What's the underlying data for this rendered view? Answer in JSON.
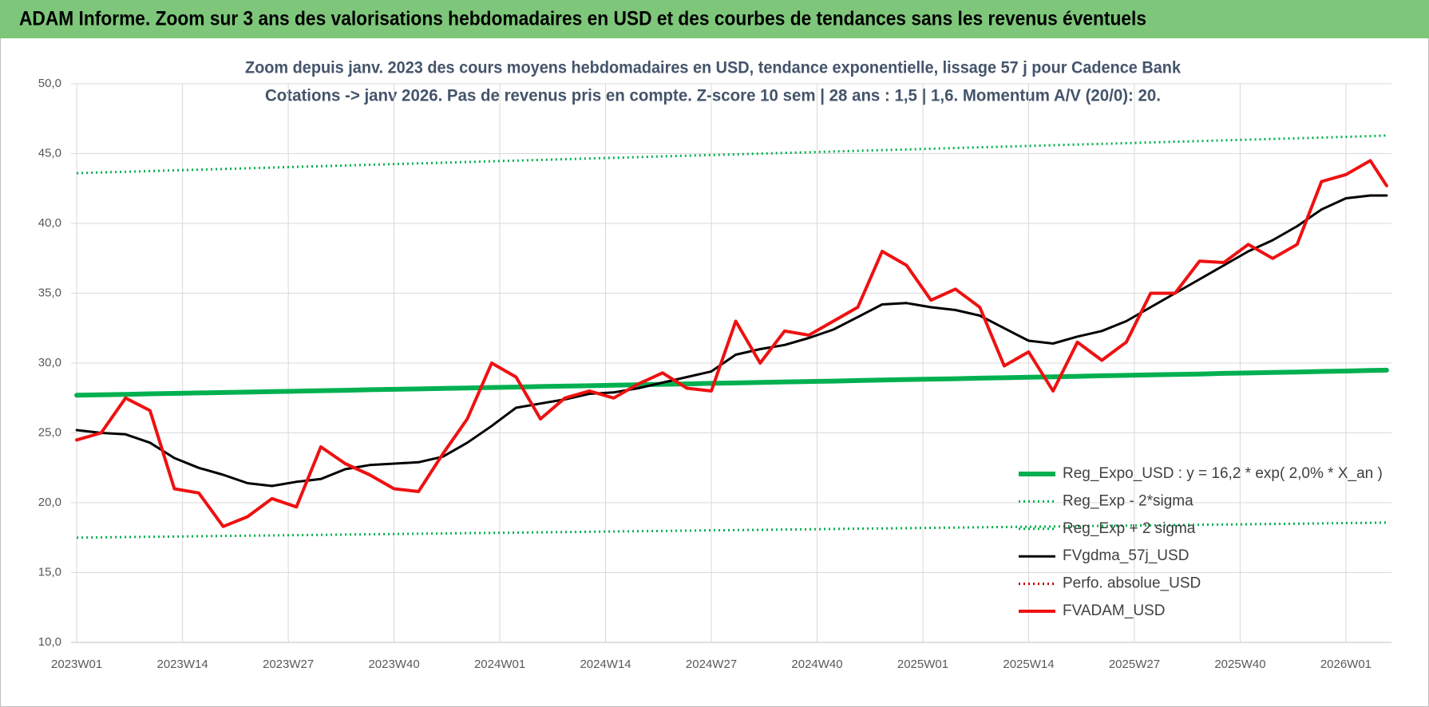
{
  "chart_data": {
    "type": "line",
    "title": "ADAM Informe. Zoom sur 3 ans des valorisations hebdomadaires en USD et des courbes de tendances sans les revenus éventuels",
    "subtitle": [
      "Zoom depuis janv. 2023 des cours moyens hebdomadaires en USD, tendance exponentielle, lissage 57 j pour Cadence Bank",
      "Cotations -> janv 2026. Pas de revenus pris en compte. Z-score 10 sem  | 28 ans : 1,5 | 1,6. Momentum A/V (20/0): 20."
    ],
    "x": [
      0,
      3,
      6,
      9,
      12,
      15,
      18,
      21,
      24,
      27,
      30,
      33,
      36,
      39,
      42,
      45,
      48,
      51,
      54,
      57,
      60,
      63,
      66,
      69,
      72,
      75,
      78,
      81,
      84,
      87,
      90,
      93,
      96,
      99,
      102,
      105,
      108,
      111,
      114,
      117,
      120,
      123,
      126,
      129,
      132,
      135,
      138,
      141,
      144,
      147,
      150,
      153,
      156,
      159,
      161
    ],
    "xlim": [
      -0.7,
      161.6
    ],
    "xticks": [
      {
        "value": 0,
        "label": "2023W01"
      },
      {
        "value": 13,
        "label": "2023W14"
      },
      {
        "value": 26,
        "label": "2023W27"
      },
      {
        "value": 39,
        "label": "2023W40"
      },
      {
        "value": 52,
        "label": "2024W01"
      },
      {
        "value": 65,
        "label": "2024W14"
      },
      {
        "value": 78,
        "label": "2024W27"
      },
      {
        "value": 91,
        "label": "2024W40"
      },
      {
        "value": 104,
        "label": "2025W01"
      },
      {
        "value": 117,
        "label": "2025W14"
      },
      {
        "value": 130,
        "label": "2025W27"
      },
      {
        "value": 143,
        "label": "2025W40"
      },
      {
        "value": 156,
        "label": "2026W01"
      }
    ],
    "ylim": [
      10,
      50
    ],
    "yticks": [
      {
        "value": 10,
        "label": "10,0"
      },
      {
        "value": 15,
        "label": "15,0"
      },
      {
        "value": 20,
        "label": "20,0"
      },
      {
        "value": 25,
        "label": "25,0"
      },
      {
        "value": 30,
        "label": "30,0"
      },
      {
        "value": 35,
        "label": "35,0"
      },
      {
        "value": 40,
        "label": "40,0"
      },
      {
        "value": 45,
        "label": "45,0"
      },
      {
        "value": 50,
        "label": "50,0"
      }
    ],
    "grid": true,
    "legend": "lower right",
    "series": [
      {
        "name": "Reg_Expo_USD : y = 16,2 * exp( 2,0% *  X_an )",
        "color": "#00b050",
        "style": "solid",
        "width": 6,
        "values": [
          27.7,
          27.73,
          27.76,
          27.8,
          27.83,
          27.86,
          27.89,
          27.92,
          27.96,
          27.99,
          28.02,
          28.05,
          28.09,
          28.12,
          28.15,
          28.18,
          28.22,
          28.25,
          28.28,
          28.32,
          28.35,
          28.38,
          28.41,
          28.45,
          28.48,
          28.51,
          28.55,
          28.58,
          28.61,
          28.65,
          28.68,
          28.71,
          28.75,
          28.78,
          28.82,
          28.85,
          28.88,
          28.92,
          28.95,
          28.99,
          29.02,
          29.05,
          29.09,
          29.12,
          29.16,
          29.19,
          29.22,
          29.26,
          29.29,
          29.33,
          29.36,
          29.4,
          29.43,
          29.47,
          29.49
        ]
      },
      {
        "name": "Reg_Exp - 2*sigma",
        "color": "#00b050",
        "style": "dotted",
        "width": 3,
        "values": [
          17.5,
          17.52,
          17.54,
          17.56,
          17.58,
          17.6,
          17.62,
          17.64,
          17.66,
          17.68,
          17.7,
          17.72,
          17.74,
          17.76,
          17.78,
          17.8,
          17.82,
          17.84,
          17.86,
          17.88,
          17.9,
          17.92,
          17.94,
          17.96,
          17.98,
          18.0,
          18.02,
          18.04,
          18.06,
          18.08,
          18.1,
          18.12,
          18.14,
          18.16,
          18.18,
          18.2,
          18.22,
          18.24,
          18.26,
          18.28,
          18.3,
          18.32,
          18.34,
          18.36,
          18.38,
          18.4,
          18.42,
          18.44,
          18.46,
          18.48,
          18.5,
          18.52,
          18.54,
          18.56,
          18.58
        ]
      },
      {
        "name": "Reg_Exp + 2 sigma",
        "color": "#00b050",
        "style": "dotted",
        "width": 3,
        "values": [
          43.6,
          43.65,
          43.7,
          43.75,
          43.8,
          43.85,
          43.9,
          43.95,
          44.0,
          44.05,
          44.1,
          44.15,
          44.2,
          44.25,
          44.3,
          44.35,
          44.4,
          44.45,
          44.5,
          44.55,
          44.6,
          44.65,
          44.7,
          44.75,
          44.8,
          44.85,
          44.9,
          44.95,
          45.0,
          45.05,
          45.1,
          45.15,
          45.2,
          45.25,
          45.3,
          45.35,
          45.4,
          45.45,
          45.5,
          45.55,
          45.6,
          45.65,
          45.7,
          45.75,
          45.8,
          45.85,
          45.9,
          45.95,
          46.0,
          46.05,
          46.1,
          46.15,
          46.2,
          46.25,
          46.3
        ]
      },
      {
        "name": "FVgdma_57j_USD",
        "color": "#000000",
        "style": "solid",
        "width": 3,
        "values": [
          25.2,
          25.0,
          24.9,
          24.3,
          23.2,
          22.5,
          22.0,
          21.4,
          21.2,
          21.5,
          21.7,
          22.4,
          22.7,
          22.8,
          22.9,
          23.3,
          24.3,
          25.5,
          26.8,
          27.1,
          27.4,
          27.8,
          27.9,
          28.2,
          28.6,
          29.0,
          29.4,
          30.6,
          31.0,
          31.3,
          31.8,
          32.4,
          33.3,
          34.2,
          34.3,
          34.0,
          33.8,
          33.4,
          32.5,
          31.6,
          31.4,
          31.9,
          32.3,
          33.0,
          34.0,
          35.0,
          36.0,
          37.0,
          38.0,
          38.8,
          39.8,
          41.0,
          41.8,
          42.0,
          42.0
        ]
      },
      {
        "name": "Perfo. absolue_USD",
        "color": "#c00000",
        "style": "dotted",
        "width": 3,
        "values": [
          null,
          null,
          null,
          null,
          null,
          null,
          null,
          null,
          null,
          null,
          null,
          null,
          null,
          null,
          null,
          null,
          null,
          null,
          null,
          null,
          null,
          null,
          null,
          null,
          null,
          null,
          null,
          null,
          null,
          null,
          null,
          null,
          null,
          null,
          null,
          null,
          null,
          null,
          null,
          null,
          null,
          null,
          null,
          null,
          null,
          null,
          null,
          null,
          null,
          null,
          null,
          null,
          null,
          null,
          null
        ]
      },
      {
        "name": "FVADAM_USD",
        "color": "#ee1111",
        "style": "solid",
        "width": 4,
        "values": [
          24.5,
          25.0,
          27.5,
          26.6,
          21.0,
          20.7,
          18.3,
          19.0,
          20.3,
          19.7,
          24.0,
          22.8,
          22.0,
          21.0,
          20.8,
          23.5,
          26.0,
          30.0,
          29.0,
          26.0,
          27.5,
          28.0,
          27.5,
          28.5,
          29.3,
          28.2,
          28.0,
          33.0,
          30.0,
          32.3,
          32.0,
          33.0,
          34.0,
          38.0,
          37.0,
          34.5,
          35.3,
          34.0,
          29.8,
          30.8,
          28.0,
          31.5,
          30.2,
          31.5,
          35.0,
          35.0,
          37.3,
          37.2,
          38.5,
          37.5,
          38.5,
          43.0,
          43.5,
          44.5,
          42.7
        ]
      }
    ]
  }
}
